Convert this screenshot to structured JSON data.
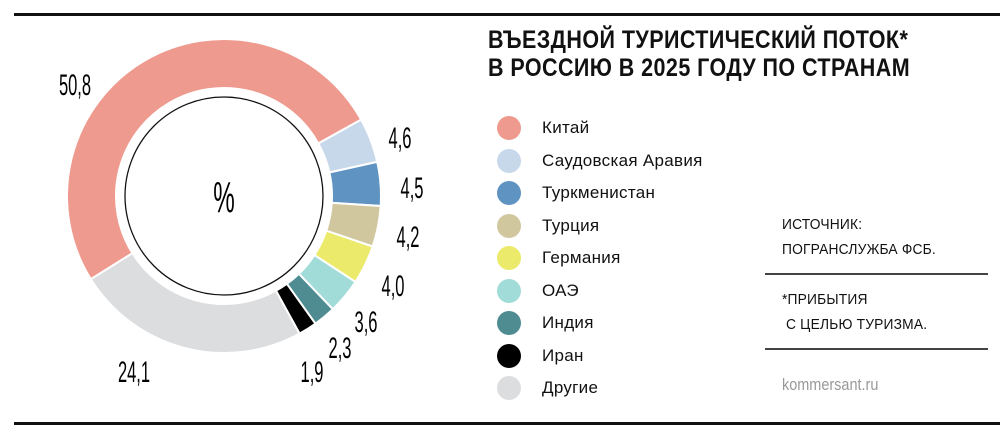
{
  "chart_data": {
    "type": "pie",
    "style": "donut",
    "title": "ВЪЕЗДНОЙ ТУРИСТИЧЕСКИЙ ПОТОК* В РОССИЮ В 2025 ГОДУ ПО СТРАНАМ",
    "title_lines": [
      "ВЪЕЗДНОЙ ТУРИСТИЧЕСКИЙ ПОТОК*",
      "В РОССИЮ В 2025 ГОДУ ПО СТРАНАМ"
    ],
    "center_label": "%",
    "legend_position": "right",
    "slices": [
      {
        "name": "Китай",
        "value": 50.8,
        "label": "50,8",
        "color": "#ef9a8e"
      },
      {
        "name": "Саудовская Аравия",
        "value": 4.6,
        "label": "4,6",
        "color": "#c7d8ea"
      },
      {
        "name": "Туркменистан",
        "value": 4.5,
        "label": "4,5",
        "color": "#5f93c2"
      },
      {
        "name": "Турция",
        "value": 4.2,
        "label": "4,2",
        "color": "#d1c79f"
      },
      {
        "name": "Германия",
        "value": 4.0,
        "label": "4,0",
        "color": "#ebea6a"
      },
      {
        "name": "ОАЭ",
        "value": 3.6,
        "label": "3,6",
        "color": "#a2dcd9"
      },
      {
        "name": "Индия",
        "value": 2.3,
        "label": "2,3",
        "color": "#4f8c92"
      },
      {
        "name": "Иран",
        "value": 1.9,
        "label": "1,9",
        "color": "#000000"
      },
      {
        "name": "Другие",
        "value": 24.1,
        "label": "24,1",
        "color": "#dcdddf"
      }
    ]
  },
  "notes": {
    "source_lines": [
      "ИСТОЧНИК:",
      "ПОГРАНСЛУЖБА ФСБ."
    ],
    "footnote_lines": [
      "*ПРИБЫТИЯ",
      " С ЦЕЛЬЮ ТУРИЗМА."
    ],
    "site": "kommersant.ru"
  }
}
